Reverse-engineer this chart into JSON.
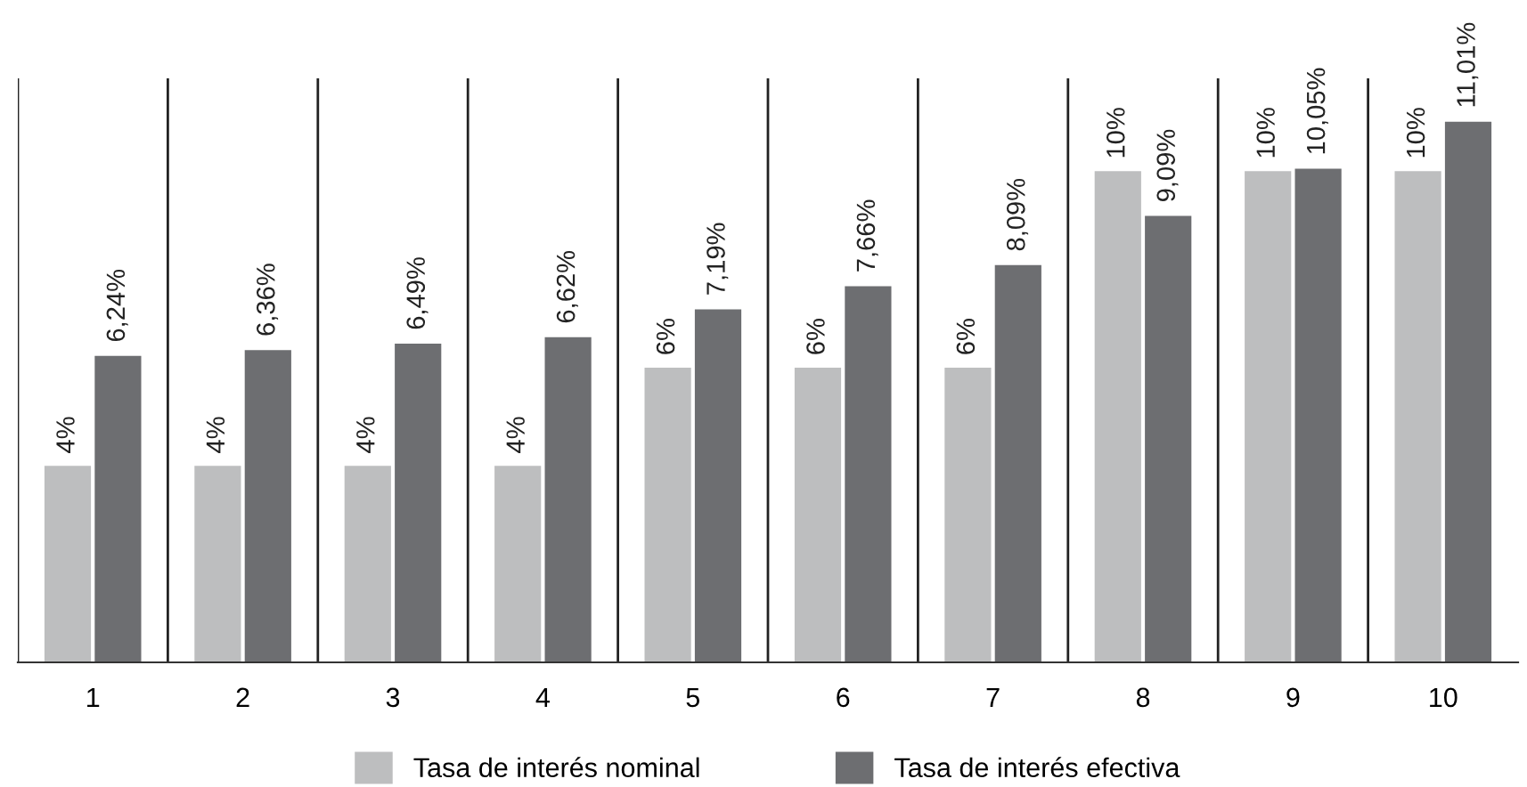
{
  "chart_data": {
    "type": "bar",
    "categories": [
      "1",
      "2",
      "3",
      "4",
      "5",
      "6",
      "7",
      "8",
      "9",
      "10"
    ],
    "series": [
      {
        "name": "Tasa de interés nominal",
        "color": "#bdbebf",
        "values": [
          4,
          4,
          4,
          4,
          6,
          6,
          6,
          10,
          10,
          10
        ],
        "value_labels": [
          "4%",
          "4%",
          "4%",
          "4%",
          "6%",
          "6%",
          "6%",
          "10%",
          "10%",
          "10%"
        ]
      },
      {
        "name": "Tasa de interés efectiva",
        "color": "#6d6e71",
        "values": [
          6.24,
          6.36,
          6.49,
          6.62,
          7.19,
          7.66,
          8.09,
          9.09,
          10.05,
          11.01
        ],
        "value_labels": [
          "6,24%",
          "6,36%",
          "6,49%",
          "6,62%",
          "7,19%",
          "7,66%",
          "8,09%",
          "9,09%",
          "10,05%",
          "11,01%"
        ]
      }
    ],
    "grid": "x",
    "legend": "bottom"
  }
}
